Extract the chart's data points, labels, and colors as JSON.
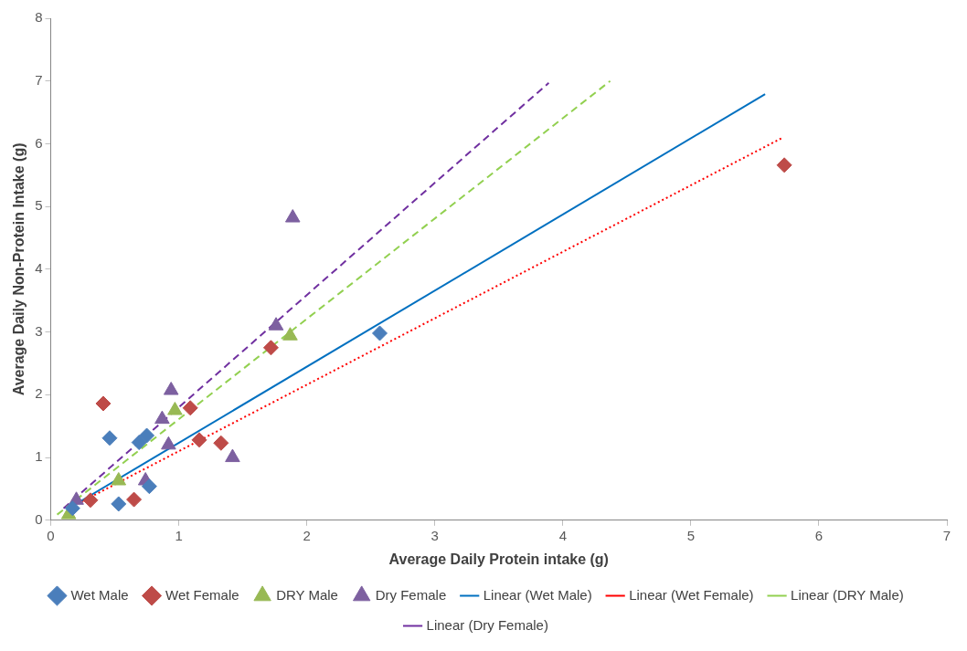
{
  "chart_data": {
    "type": "scatter",
    "xlabel": "Average Daily Protein intake (g)",
    "ylabel": "Average Daily Non-Protein Intake (g)",
    "xlim": [
      0,
      7
    ],
    "xticks": [
      0,
      1,
      2,
      3,
      4,
      5,
      6,
      7
    ],
    "ylim": [
      0,
      8
    ],
    "yticks": [
      0,
      1,
      2,
      3,
      4,
      5,
      6,
      7,
      8
    ],
    "grid": false,
    "legend": "bottom",
    "series": [
      {
        "name": "Wet Male",
        "type": "scatter",
        "marker": "diamond",
        "color": "#4a7ebb",
        "x": [
          0.17,
          0.46,
          0.53,
          0.69,
          0.75,
          0.77,
          2.57
        ],
        "values": [
          0.19,
          1.31,
          0.26,
          1.24,
          1.35,
          0.54,
          2.98
        ]
      },
      {
        "name": "Wet Female",
        "type": "scatter",
        "marker": "diamond",
        "color": "#be4b48",
        "x": [
          0.31,
          0.41,
          0.65,
          1.09,
          1.16,
          1.33,
          1.72,
          5.73
        ],
        "values": [
          0.32,
          1.86,
          0.33,
          1.79,
          1.28,
          1.23,
          2.75,
          5.66
        ]
      },
      {
        "name": "DRY Male",
        "type": "scatter",
        "marker": "triangle",
        "color": "#98b954",
        "x": [
          0.14,
          0.53,
          0.97,
          1.87
        ],
        "values": [
          0.09,
          0.63,
          1.75,
          2.94
        ]
      },
      {
        "name": "Dry Female",
        "type": "scatter",
        "marker": "triangle",
        "color": "#7d60a0",
        "x": [
          0.2,
          0.74,
          0.87,
          0.92,
          0.94,
          1.42,
          1.76,
          1.89
        ],
        "values": [
          0.32,
          0.63,
          1.61,
          1.2,
          2.07,
          1.0,
          3.1,
          4.82
        ]
      },
      {
        "name": "Linear (Wet Male)",
        "type": "line",
        "marker": "none",
        "line_style": "solid",
        "color": "#0070c0",
        "x": [
          0.14,
          5.58
        ],
        "values": [
          0.19,
          6.79
        ]
      },
      {
        "name": "Linear (Wet Female)",
        "type": "line",
        "marker": "none",
        "line_style": "dotted",
        "color": "#ff0000",
        "x": [
          0.15,
          5.71
        ],
        "values": [
          0.2,
          6.09
        ]
      },
      {
        "name": "Linear (DRY Male)",
        "type": "line",
        "marker": "none",
        "line_style": "dashed",
        "color": "#92d050",
        "x": [
          0.05,
          4.37
        ],
        "values": [
          0.09,
          7.0
        ]
      },
      {
        "name": "Linear (Dry Female)",
        "type": "line",
        "marker": "none",
        "line_style": "dashed",
        "color": "#7030a0",
        "x": [
          0.1,
          3.89
        ],
        "values": [
          0.19,
          6.97
        ]
      }
    ]
  }
}
